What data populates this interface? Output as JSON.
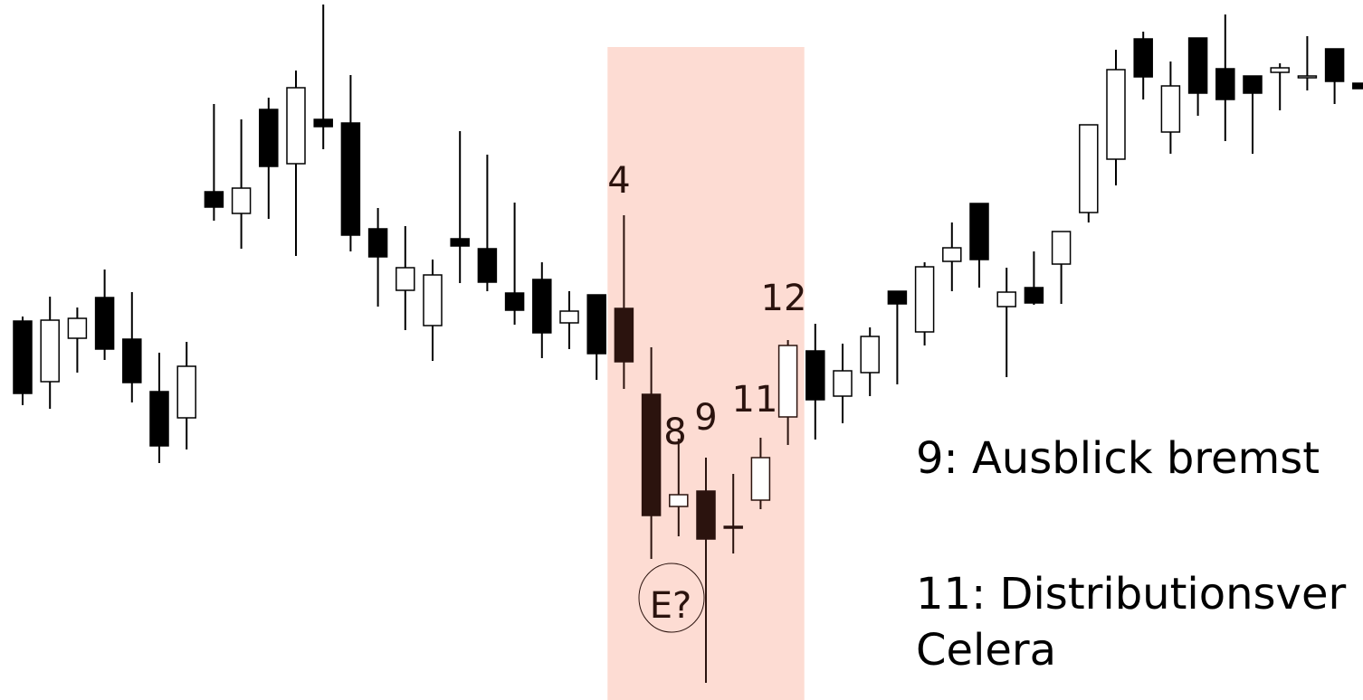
{
  "chart_data": {
    "type": "candlestick",
    "ylim": [
      0,
      774
    ],
    "up_color": "#ffffff",
    "down_color": "#000000",
    "highlight": {
      "color": "#fddcd3",
      "first": 22,
      "last": 28,
      "mark_color": "#2b130e"
    },
    "open": [
      419,
      352,
      400,
      445,
      399,
      341,
      312,
      562,
      538,
      653,
      593,
      642,
      638,
      521,
      453,
      414,
      510,
      499,
      450,
      465,
      417,
      448,
      433,
      338,
      214,
      231,
      192,
      221,
      313,
      386,
      336,
      362,
      452,
      407,
      485,
      549,
      435,
      456,
      482,
      539,
      598,
      731,
      628,
      732,
      698,
      690,
      694,
      690,
      720,
      682
    ],
    "high": [
      424,
      446,
      434,
      476,
      451,
      384,
      396,
      659,
      642,
      666,
      696,
      769,
      691,
      544,
      524,
      487,
      629,
      603,
      550,
      484,
      452,
      448,
      536,
      390,
      289,
      268,
      250,
      290,
      398,
      416,
      394,
      412,
      452,
      484,
      528,
      549,
      478,
      496,
      518,
      636,
      719,
      739,
      706,
      732,
      758,
      690,
      704,
      734,
      720,
      682
    ],
    "low": [
      326,
      322,
      362,
      376,
      329,
      262,
      277,
      530,
      499,
      532,
      491,
      609,
      496,
      435,
      409,
      375,
      461,
      452,
      415,
      378,
      388,
      354,
      344,
      156,
      181,
      19,
      162,
      211,
      282,
      288,
      306,
      336,
      349,
      392,
      452,
      456,
      357,
      437,
      438,
      528,
      569,
      664,
      604,
      646,
      618,
      604,
      652,
      674,
      659,
      676
    ],
    "close": [
      339,
      420,
      422,
      388,
      351,
      281,
      369,
      545,
      566,
      590,
      677,
      634,
      514,
      490,
      478,
      470,
      502,
      462,
      431,
      406,
      430,
      383,
      374,
      204,
      227,
      178,
      190,
      268,
      392,
      332,
      364,
      402,
      438,
      479,
      500,
      487,
      451,
      439,
      518,
      636,
      697,
      689,
      679,
      671,
      664,
      671,
      699,
      690,
      684,
      676
    ],
    "annotations": [
      "4",
      "8",
      "9",
      "11",
      "12",
      "E?"
    ],
    "notes": [
      "9: Ausblick bremst",
      "11: Distributionsver",
      "Celera"
    ]
  }
}
